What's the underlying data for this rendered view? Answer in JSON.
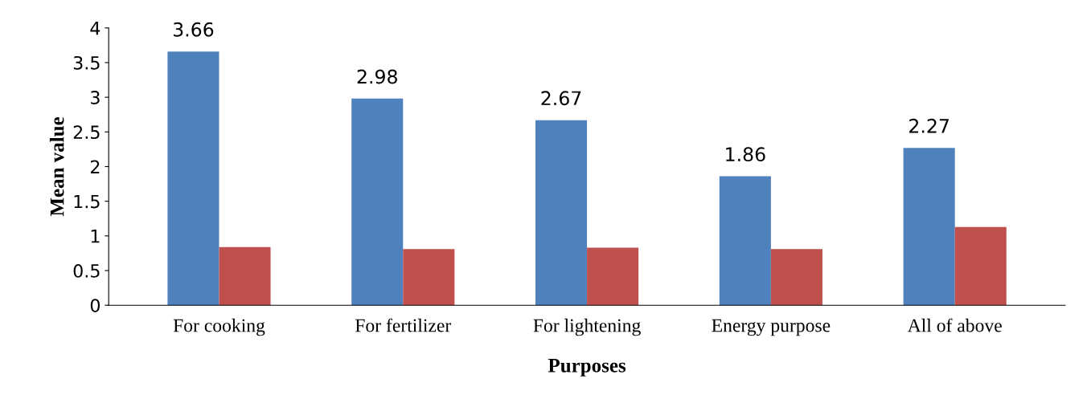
{
  "chart_data": {
    "type": "bar",
    "xlabel": "Purposes",
    "ylabel": "Mean value",
    "categories": [
      "For cooking",
      "For fertilizer",
      "For lightening",
      "Energy purpose",
      "All of above"
    ],
    "series": [
      {
        "color": "#4f81bd",
        "values": [
          3.66,
          2.98,
          2.67,
          1.86,
          2.27
        ],
        "value_labels": [
          "3.66",
          "2.98",
          "2.67",
          "1.86",
          "2.27"
        ]
      },
      {
        "color": "#c0504d",
        "values": [
          0.84,
          0.81,
          0.83,
          0.81,
          1.13
        ]
      }
    ],
    "ylim": [
      0,
      4
    ],
    "yticks": [
      0,
      0.5,
      1,
      1.5,
      2,
      2.5,
      3,
      3.5,
      4
    ],
    "grid": false,
    "legend": false
  }
}
